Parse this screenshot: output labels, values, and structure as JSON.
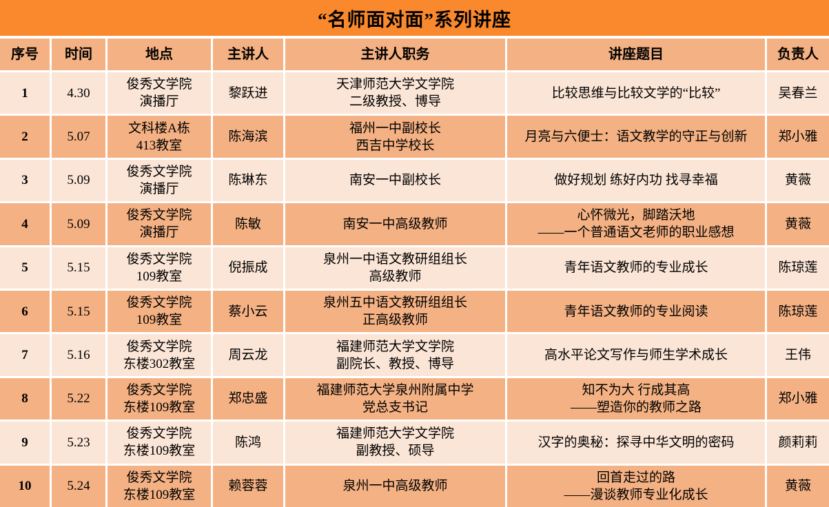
{
  "title": "“名师面对面”系列讲座",
  "colors": {
    "title_bar": "#FA892D",
    "header_band": "#F4B183",
    "row_band_light": "#FBE5D6",
    "row_band_dark": "#F4B183",
    "gridline": "#FFFFFF",
    "text": "#000000"
  },
  "table": {
    "headers": [
      "序号",
      "时间",
      "地点",
      "主讲人",
      "主讲人职务",
      "讲座题目",
      "负责人"
    ],
    "rows": [
      {
        "no": "1",
        "time": "4.30",
        "place": [
          "俊秀文学院",
          "演播厅"
        ],
        "speaker": "黎跃进",
        "position": [
          "天津师范大学文学院",
          "二级教授、博导"
        ],
        "topic": [
          "比较思维与比较文学的“比较”"
        ],
        "manager": "吴春兰"
      },
      {
        "no": "2",
        "time": "5.07",
        "place": [
          "文科楼A栋",
          "413教室"
        ],
        "speaker": "陈海滨",
        "position": [
          "福州一中副校长",
          "西吉中学校长"
        ],
        "topic": [
          "月亮与六便士：语文教学的守正与创新"
        ],
        "manager": "郑小雅"
      },
      {
        "no": "3",
        "time": "5.09",
        "place": [
          "俊秀文学院",
          "演播厅"
        ],
        "speaker": "陈琳东",
        "position": [
          "南安一中副校长"
        ],
        "topic": [
          "做好规划 练好内功 找寻幸福"
        ],
        "manager": "黄薇"
      },
      {
        "no": "4",
        "time": "5.09",
        "place": [
          "俊秀文学院",
          "演播厅"
        ],
        "speaker": "陈敏",
        "position": [
          "南安一中高级教师"
        ],
        "topic": [
          "心怀微光，脚踏沃地",
          "——一个普通语文老师的职业感想"
        ],
        "manager": "黄薇"
      },
      {
        "no": "5",
        "time": "5.15",
        "place": [
          "俊秀文学院",
          "109教室"
        ],
        "speaker": "倪振成",
        "position": [
          "泉州一中语文教研组组长",
          "高级教师"
        ],
        "topic": [
          "青年语文教师的专业成长"
        ],
        "manager": "陈琼莲"
      },
      {
        "no": "6",
        "time": "5.15",
        "place": [
          "俊秀文学院",
          "109教室"
        ],
        "speaker": "蔡小云",
        "position": [
          "泉州五中语文教研组组长",
          "正高级教师"
        ],
        "topic": [
          "青年语文教师的专业阅读"
        ],
        "manager": "陈琼莲"
      },
      {
        "no": "7",
        "time": "5.16",
        "place": [
          "俊秀文学院",
          "东楼302教室"
        ],
        "speaker": "周云龙",
        "position": [
          "福建师范大学文学院",
          "副院长、教授、博导"
        ],
        "topic": [
          "高水平论文写作与师生学术成长"
        ],
        "manager": "王伟"
      },
      {
        "no": "8",
        "time": "5.22",
        "place": [
          "俊秀文学院",
          "东楼109教室"
        ],
        "speaker": "郑忠盛",
        "position": [
          "福建师范大学泉州附属中学",
          "党总支书记"
        ],
        "topic": [
          "知不为大 行成其高",
          "——塑造你的教师之路"
        ],
        "manager": "郑小雅"
      },
      {
        "no": "9",
        "time": "5.23",
        "place": [
          "俊秀文学院",
          "东楼109教室"
        ],
        "speaker": "陈鸿",
        "position": [
          "福建师范大学文学院",
          "副教授、硕导"
        ],
        "topic": [
          "汉字的奥秘：探寻中华文明的密码"
        ],
        "manager": "颜莉莉"
      },
      {
        "no": "10",
        "time": "5.24",
        "place": [
          "俊秀文学院",
          "东楼109教室"
        ],
        "speaker": "赖蓉蓉",
        "position": [
          "泉州一中高级教师"
        ],
        "topic": [
          "回首走过的路",
          "——漫谈教师专业化成长"
        ],
        "manager": "黄薇"
      }
    ]
  }
}
